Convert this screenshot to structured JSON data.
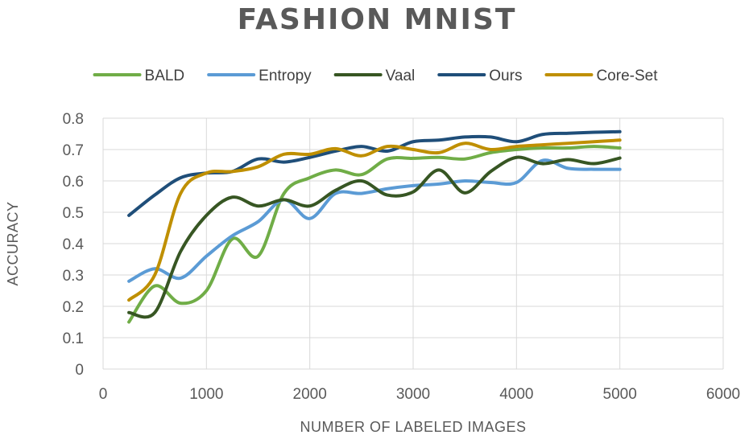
{
  "chart_data": {
    "type": "line",
    "title": "FASHION MNIST",
    "xlabel": "NUMBER OF LABELED IMAGES",
    "ylabel": "ACCURACY",
    "xlim": [
      0,
      6000
    ],
    "ylim": [
      0,
      0.8
    ],
    "xticks": [
      0,
      1000,
      2000,
      3000,
      4000,
      5000,
      6000
    ],
    "yticks": [
      0,
      0.1,
      0.2,
      0.3,
      0.4,
      0.5,
      0.6,
      0.7,
      0.8
    ],
    "xtick_labels": [
      "0",
      "1000",
      "2000",
      "3000",
      "4000",
      "5000",
      "6000"
    ],
    "ytick_labels": [
      "0",
      "0.1",
      "0.2",
      "0.3",
      "0.4",
      "0.5",
      "0.6",
      "0.7",
      "0.8"
    ],
    "grid": true,
    "legend_position": "top",
    "x": [
      250,
      500,
      750,
      1000,
      1250,
      1500,
      1750,
      2000,
      2250,
      2500,
      2750,
      3000,
      3250,
      3500,
      3750,
      4000,
      4250,
      4500,
      4750,
      5000
    ],
    "series": [
      {
        "name": "BALD",
        "color": "#70ad47",
        "values": [
          0.15,
          0.265,
          0.21,
          0.25,
          0.415,
          0.36,
          0.56,
          0.61,
          0.635,
          0.62,
          0.67,
          0.672,
          0.675,
          0.67,
          0.69,
          0.7,
          0.705,
          0.705,
          0.71,
          0.705
        ]
      },
      {
        "name": "Entropy",
        "color": "#5b9bd5",
        "values": [
          0.28,
          0.32,
          0.29,
          0.36,
          0.425,
          0.47,
          0.54,
          0.48,
          0.56,
          0.56,
          0.575,
          0.585,
          0.59,
          0.6,
          0.595,
          0.595,
          0.665,
          0.64,
          0.637,
          0.637
        ]
      },
      {
        "name": "Vaal",
        "color": "#375623",
        "values": [
          0.18,
          0.18,
          0.375,
          0.49,
          0.548,
          0.52,
          0.54,
          0.52,
          0.57,
          0.6,
          0.555,
          0.565,
          0.635,
          0.562,
          0.63,
          0.675,
          0.655,
          0.668,
          0.655,
          0.673
        ]
      },
      {
        "name": "Ours",
        "color": "#1f4e79",
        "values": [
          0.49,
          0.555,
          0.61,
          0.625,
          0.63,
          0.67,
          0.66,
          0.675,
          0.695,
          0.71,
          0.695,
          0.725,
          0.73,
          0.74,
          0.74,
          0.725,
          0.748,
          0.752,
          0.755,
          0.757
        ]
      },
      {
        "name": "Core-Set",
        "color": "#bf8f00",
        "values": [
          0.22,
          0.3,
          0.56,
          0.625,
          0.63,
          0.645,
          0.685,
          0.685,
          0.703,
          0.68,
          0.71,
          0.7,
          0.69,
          0.72,
          0.7,
          0.71,
          0.715,
          0.72,
          0.725,
          0.73
        ]
      }
    ]
  }
}
